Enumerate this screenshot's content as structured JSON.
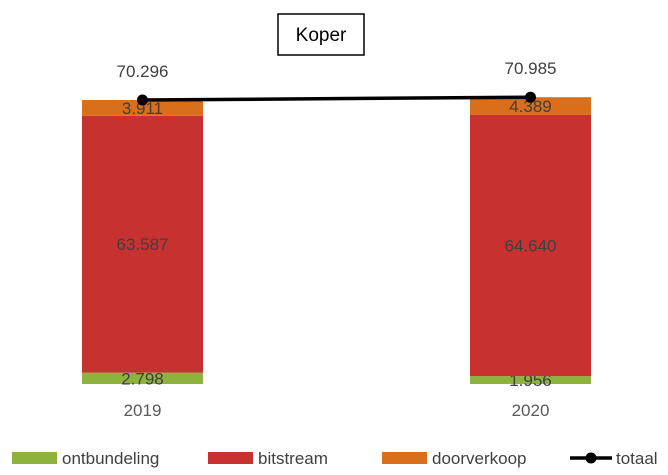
{
  "chart_data": {
    "type": "bar",
    "stacked": true,
    "title": "Koper",
    "categories": [
      "2019",
      "2020"
    ],
    "series": [
      {
        "name": "ontbundeling",
        "values": [
          2798,
          1956
        ],
        "labels": [
          "2.798",
          "1.956"
        ],
        "color": "#8DB33E"
      },
      {
        "name": "bitstream",
        "values": [
          63587,
          64640
        ],
        "labels": [
          "63.587",
          "64.640"
        ],
        "color": "#C73231"
      },
      {
        "name": "doorverkoop",
        "values": [
          3911,
          4389
        ],
        "labels": [
          "3.911",
          "4.389"
        ],
        "color": "#D96E1B"
      }
    ],
    "line_series": {
      "name": "totaal",
      "values": [
        70296,
        70985
      ],
      "labels": [
        "70.296",
        "70.985"
      ],
      "color": "#000000"
    },
    "legend_position": "bottom",
    "grid": false
  }
}
